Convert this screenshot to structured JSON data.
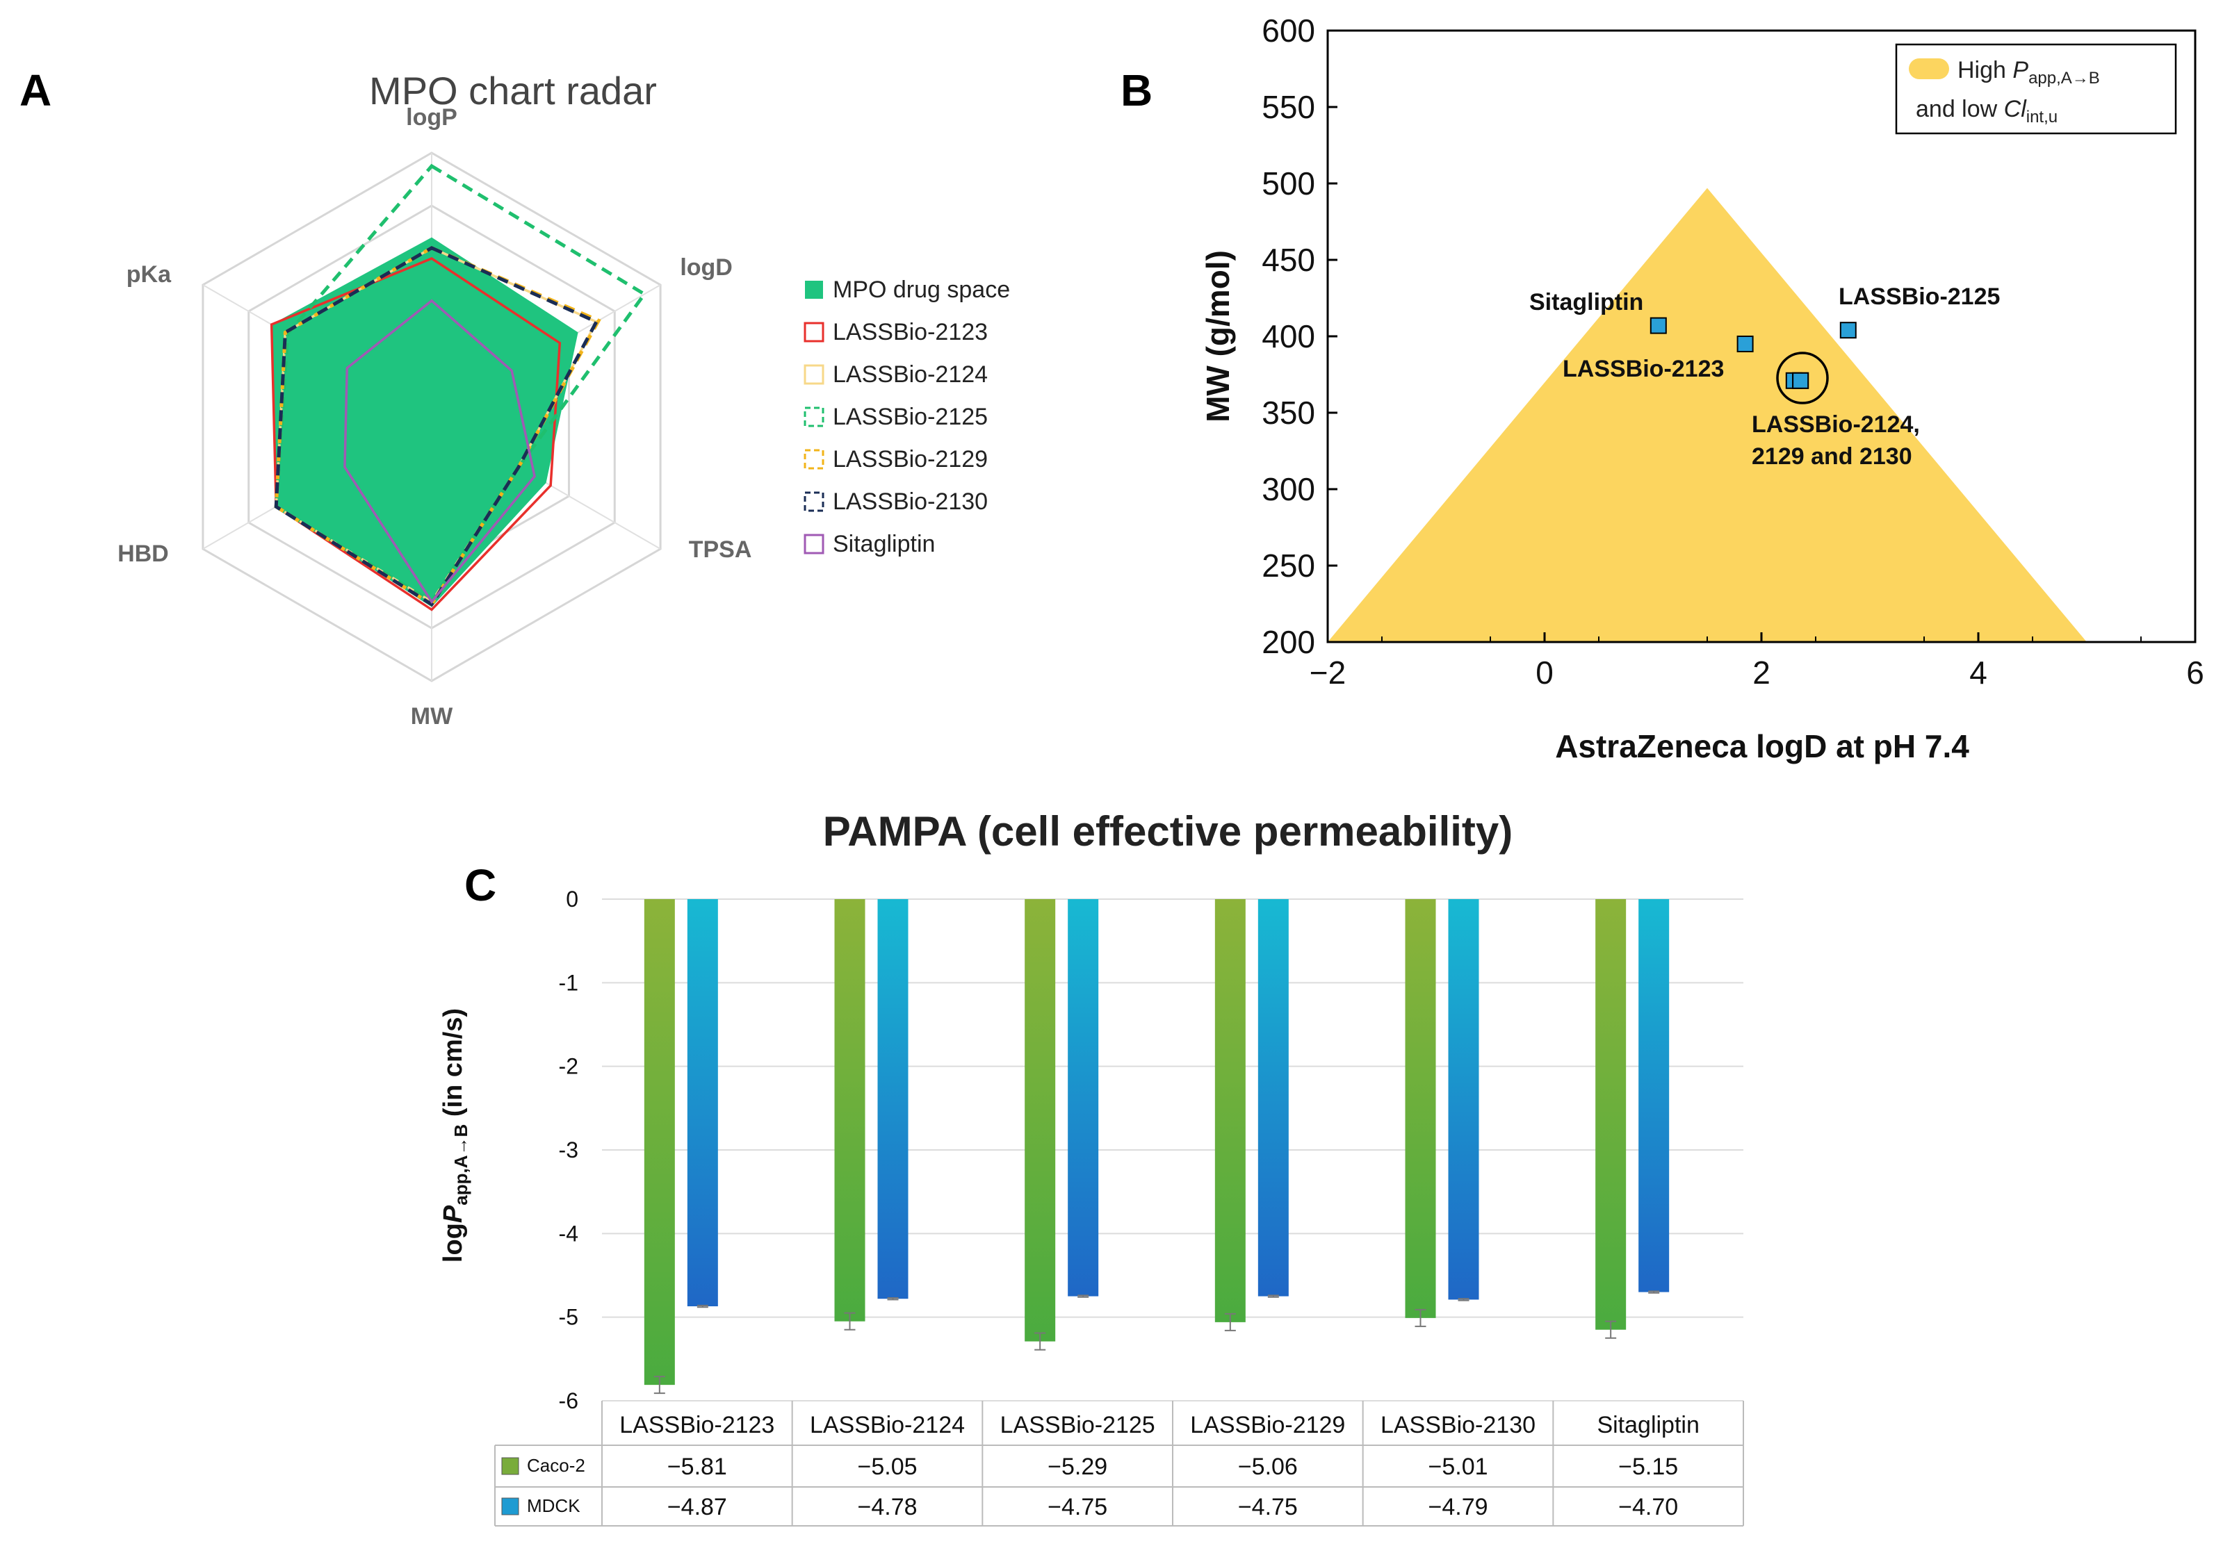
{
  "panels": {
    "a": {
      "letter": "A"
    },
    "b": {
      "letter": "B"
    },
    "c": {
      "letter": "C"
    }
  },
  "colors": {
    "drug_space": "#1fc47f",
    "lassbio_2123": "#e8302c",
    "lassbio_2124": "#f7d889",
    "lassbio_2125": "#1fbf6e",
    "lassbio_2129": "#f2b41a",
    "lassbio_2130": "#1a2d55",
    "sitagliptin": "#a05ab4",
    "triangle": "#fcd55f",
    "square_fill": "#2aa0d8",
    "caco2_top": "#8cb33a",
    "caco2_bottom": "#4aab3f",
    "mdck_top": "#18b9d2",
    "mdck_bottom": "#1f67c6"
  },
  "chart_data": [
    {
      "type": "radar",
      "title": "MPO chart radar",
      "axes": [
        "logP",
        "logD",
        "TPSA",
        "MW",
        "HBD",
        "pKa"
      ],
      "grid_levels": 5,
      "scale": [
        0,
        1
      ],
      "series": [
        {
          "name": "MPO drug space",
          "style": "filled",
          "color": "#1fc47f",
          "values": [
            0.68,
            0.64,
            0.5,
            0.72,
            0.68,
            0.7
          ]
        },
        {
          "name": "LASSBio-2123",
          "style": "solid",
          "color": "#e8302c",
          "values": [
            0.6,
            0.56,
            0.52,
            0.73,
            0.68,
            0.7
          ]
        },
        {
          "name": "LASSBio-2124",
          "style": "solid",
          "color": "#f7d889",
          "values": [
            0.64,
            0.72,
            0.38,
            0.7,
            0.68,
            0.64
          ]
        },
        {
          "name": "LASSBio-2125",
          "style": "dashed",
          "color": "#1fbf6e",
          "values": [
            0.95,
            0.93,
            0.38,
            0.7,
            0.68,
            0.63
          ]
        },
        {
          "name": "LASSBio-2129",
          "style": "dashed",
          "color": "#f2b41a",
          "values": [
            0.64,
            0.73,
            0.38,
            0.71,
            0.68,
            0.64
          ]
        },
        {
          "name": "LASSBio-2130",
          "style": "dashed",
          "color": "#1a2d55",
          "values": [
            0.64,
            0.72,
            0.38,
            0.71,
            0.68,
            0.64
          ]
        },
        {
          "name": "Sitagliptin",
          "style": "solid",
          "color": "#a05ab4",
          "values": [
            0.44,
            0.35,
            0.45,
            0.7,
            0.38,
            0.37
          ]
        }
      ]
    },
    {
      "type": "scatter",
      "xlabel": "AstraZeneca logD at pH 7.4",
      "ylabel": "MW (g/mol)",
      "xlim": [
        -2,
        6
      ],
      "ylim": [
        200,
        600
      ],
      "xticks": [
        "−2",
        "0",
        "2",
        "4",
        "6"
      ],
      "yticks": [
        "200",
        "250",
        "300",
        "350",
        "400",
        "450",
        "500",
        "550",
        "600"
      ],
      "region": {
        "apex": [
          1.5,
          497
        ],
        "base_left": [
          -2,
          200
        ],
        "base_right": [
          5,
          200
        ]
      },
      "legend": {
        "line1_prefix": "High ",
        "line1_var": "P",
        "line1_sub": "app,A→B",
        "line2_prefix": "and low ",
        "line2_var": "Cl",
        "line2_sub": "int,u"
      },
      "points": [
        {
          "name": "Sitagliptin",
          "x": 1.05,
          "y": 407
        },
        {
          "name": "LASSBio-2123",
          "x": 1.85,
          "y": 395
        },
        {
          "name": "LASSBio-2125",
          "x": 2.8,
          "y": 404
        },
        {
          "name": "LASSBio-2124",
          "x": 2.3,
          "y": 371
        },
        {
          "name": "LASSBio-2129",
          "x": 2.36,
          "y": 371
        },
        {
          "name": "LASSBio-2130",
          "x": 2.36,
          "y": 371
        }
      ],
      "labels": {
        "sitagliptin": "Sitagliptin",
        "lassbio_2123": "LASSBio-2123",
        "lassbio_2125": "LASSBio-2125",
        "group_line1": "LASSBio-2124,",
        "group_line2": "2129 and 2130"
      }
    },
    {
      "type": "bar",
      "title": "PAMPA (cell effective permeability)",
      "ylabel_prefix": "log",
      "ylabel_var": "P",
      "ylabel_sub": "app,A→B",
      "ylabel_suffix": " (in cm/s)",
      "ylim": [
        -6,
        0
      ],
      "yticks": [
        "0",
        "-1",
        "-2",
        "-3",
        "-4",
        "-5",
        "-6"
      ],
      "categories": [
        "LASSBio-2123",
        "LASSBio-2124",
        "LASSBio-2125",
        "LASSBio-2129",
        "LASSBio-2130",
        "Sitagliptin"
      ],
      "series": [
        {
          "name": "Caco-2",
          "values": [
            -5.81,
            -5.05,
            -5.29,
            -5.06,
            -5.01,
            -5.15
          ],
          "errors": [
            0.1,
            0.1,
            0.1,
            0.1,
            0.1,
            0.1
          ],
          "table": [
            "−5.81",
            "−5.05",
            "−5.29",
            "−5.06",
            "−5.01",
            "−5.15"
          ]
        },
        {
          "name": "MDCK",
          "values": [
            -4.87,
            -4.78,
            -4.75,
            -4.75,
            -4.79,
            -4.7
          ],
          "errors": [
            0.01,
            0.01,
            0.01,
            0.01,
            0.01,
            0.01
          ],
          "table": [
            "−4.87",
            "−4.78",
            "−4.75",
            "−4.75",
            "−4.79",
            "−4.70"
          ]
        }
      ]
    }
  ]
}
